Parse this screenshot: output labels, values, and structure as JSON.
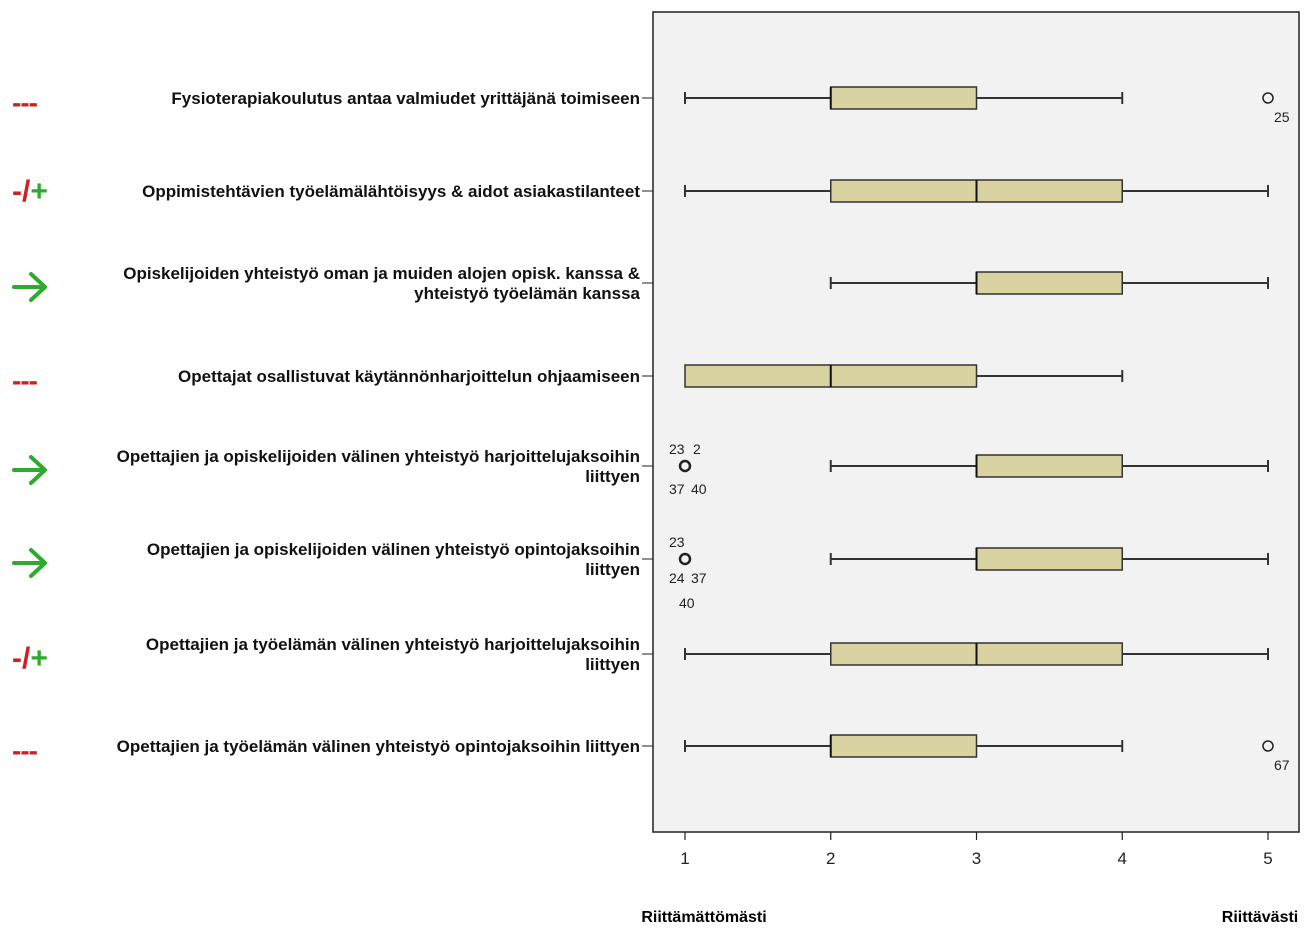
{
  "colors": {
    "plot_background": "#f2f2f2",
    "box_fill": "#d8d3a0",
    "box_stroke": "#333333",
    "marker_negative": "#cc2222",
    "marker_positive": "#2eaa2e"
  },
  "axis_words": {
    "left": "Riittämättömästi",
    "right": "Riittävästi"
  },
  "chart_data": {
    "type": "boxplot",
    "orientation": "horizontal",
    "xlim": [
      0.8,
      5.2
    ],
    "xticks": [
      "1",
      "2",
      "3",
      "4",
      "5"
    ],
    "grid": false,
    "categories": [
      {
        "label_lines": [
          "Fysioterapiakoulutus antaa valmiudet yrittäjänä toimiseen"
        ],
        "marker": "---",
        "whisker_low": 1,
        "q1": 2,
        "median": 2,
        "q3": 3,
        "whisker_high": 4,
        "outliers": [
          {
            "value": 5,
            "labels": [
              "25"
            ]
          }
        ]
      },
      {
        "label_lines": [
          "Oppimistehtävien työelämälähtöisyys & aidot asiakastilanteet"
        ],
        "marker": "-/+",
        "whisker_low": 1,
        "q1": 2,
        "median": 3,
        "q3": 4,
        "whisker_high": 5,
        "outliers": []
      },
      {
        "label_lines": [
          "Opiskelijoiden yhteistyö oman ja muiden alojen opisk. kanssa &",
          "yhteistyö työelämän kanssa"
        ],
        "marker": "arrow",
        "whisker_low": 2,
        "q1": 3,
        "median": 3,
        "q3": 4,
        "whisker_high": 5,
        "outliers": []
      },
      {
        "label_lines": [
          "Opettajat osallistuvat käytännönharjoittelun ohjaamiseen"
        ],
        "marker": "---",
        "whisker_low": 1,
        "q1": 1,
        "median": 2,
        "q3": 3,
        "whisker_high": 4,
        "outliers": []
      },
      {
        "label_lines": [
          "Opettajien ja opiskelijoiden välinen yhteistyö harjoittelujaksoihin",
          "liittyen"
        ],
        "marker": "arrow",
        "whisker_low": 2,
        "q1": 3,
        "median": 3,
        "q3": 4,
        "whisker_high": 5,
        "outliers": [
          {
            "value": 1,
            "labels": [
              "23",
              "2",
              "37",
              "40"
            ]
          }
        ]
      },
      {
        "label_lines": [
          "Opettajien ja opiskelijoiden välinen yhteistyö opintojaksoihin",
          "liittyen"
        ],
        "marker": "arrow",
        "whisker_low": 2,
        "q1": 3,
        "median": 3,
        "q3": 4,
        "whisker_high": 5,
        "outliers": [
          {
            "value": 1,
            "labels": [
              "23",
              "24",
              "37",
              "40"
            ]
          }
        ]
      },
      {
        "label_lines": [
          "Opettajien ja työelämän välinen yhteistyö harjoittelujaksoihin",
          "liittyen"
        ],
        "marker": "-/+",
        "whisker_low": 1,
        "q1": 2,
        "median": 3,
        "q3": 4,
        "whisker_high": 5,
        "outliers": []
      },
      {
        "label_lines": [
          "Opettajien ja työelämän välinen yhteistyö opintojaksoihin liittyen"
        ],
        "marker": "---",
        "whisker_low": 1,
        "q1": 2,
        "median": 2,
        "q3": 3,
        "whisker_high": 4,
        "outliers": [
          {
            "value": 5,
            "labels": [
              "67"
            ]
          }
        ]
      }
    ]
  }
}
